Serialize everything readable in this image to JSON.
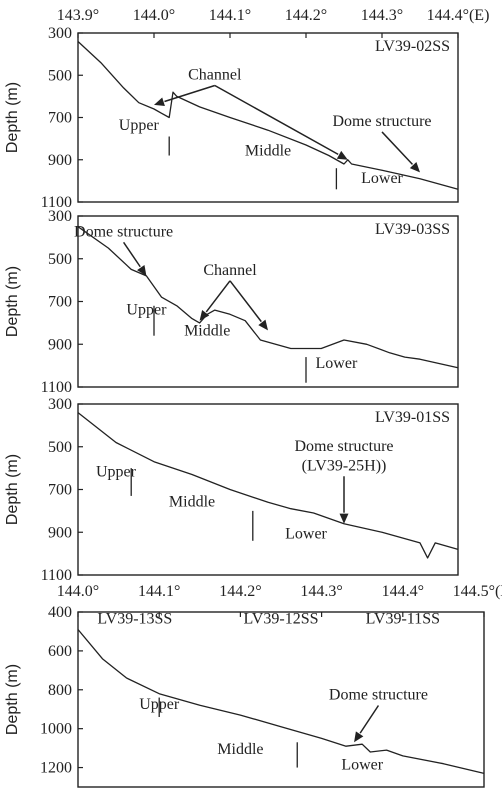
{
  "chart_data": [
    {
      "type": "line",
      "title": "LV39-02SS",
      "top_axis": {
        "ticks": [
          "143.9°",
          "144.0°",
          "144.1°",
          "144.2°",
          "144.3°",
          "144.4°(E)"
        ],
        "values": [
          143.9,
          144.0,
          144.1,
          144.2,
          144.3,
          144.4
        ]
      },
      "xlim": [
        143.9,
        144.4
      ],
      "ylabel": "Depth (m)",
      "ylim": [
        300,
        1100
      ],
      "yticks": [
        "300",
        "500",
        "700",
        "900",
        "1100"
      ],
      "yvalues": [
        300,
        500,
        700,
        900,
        1100
      ],
      "series": [
        {
          "x": [
            143.9,
            143.93,
            143.96,
            143.98,
            144.0,
            144.01,
            144.02,
            144.025,
            144.03,
            144.06,
            144.1,
            144.15,
            144.2,
            144.23,
            144.25,
            144.255,
            144.26,
            144.3,
            144.35,
            144.4
          ],
          "y": [
            340,
            440,
            560,
            630,
            660,
            680,
            700,
            580,
            600,
            650,
            700,
            760,
            830,
            880,
            920,
            900,
            920,
            950,
            990,
            1040
          ]
        }
      ],
      "annotations": [
        {
          "text": "Channel",
          "x": 144.08,
          "y": 520,
          "arrows": [
            [
              144.0,
              640
            ],
            [
              144.255,
              900
            ]
          ]
        },
        {
          "text": "Dome structure",
          "x": 144.3,
          "y": 740,
          "arrows": [
            [
              144.35,
              960
            ]
          ]
        },
        {
          "text": "Upper",
          "x": 143.98,
          "y": 760
        },
        {
          "text": "Middle",
          "x": 144.15,
          "y": 880
        },
        {
          "text": "Lower",
          "x": 144.3,
          "y": 1010
        }
      ],
      "zone_marks": [
        {
          "x": 144.02,
          "y0": 790,
          "y1": 880
        },
        {
          "x": 144.24,
          "y0": 940,
          "y1": 1040
        }
      ]
    },
    {
      "type": "line",
      "title": "LV39-03SS",
      "xlim": [
        143.9,
        144.4
      ],
      "ylabel": "Depth (m)",
      "ylim": [
        300,
        1100
      ],
      "yticks": [
        "300",
        "500",
        "700",
        "900",
        "1100"
      ],
      "yvalues": [
        300,
        500,
        700,
        900,
        1100
      ],
      "series": [
        {
          "x": [
            143.9,
            143.94,
            143.97,
            143.99,
            144.01,
            144.03,
            144.05,
            144.06,
            144.07,
            144.08,
            144.1,
            144.12,
            144.14,
            144.16,
            144.18,
            144.22,
            144.25,
            144.28,
            144.31,
            144.33,
            144.35,
            144.4
          ],
          "y": [
            350,
            450,
            550,
            580,
            680,
            720,
            780,
            800,
            760,
            740,
            760,
            790,
            880,
            900,
            920,
            920,
            880,
            900,
            940,
            960,
            970,
            1010
          ]
        }
      ],
      "annotations": [
        {
          "text": "Dome structure",
          "x": 143.96,
          "y": 395,
          "arrows": [
            [
              143.99,
              580
            ]
          ]
        },
        {
          "text": "Channel",
          "x": 144.1,
          "y": 575,
          "arrows": [
            [
              144.06,
              790
            ],
            [
              144.15,
              835
            ]
          ]
        },
        {
          "text": "Upper",
          "x": 143.99,
          "y": 760
        },
        {
          "text": "Middle",
          "x": 144.07,
          "y": 860
        },
        {
          "text": "Lower",
          "x": 144.24,
          "y": 1010
        }
      ],
      "zone_marks": [
        {
          "x": 144.0,
          "y0": 720,
          "y1": 860
        },
        {
          "x": 144.2,
          "y0": 960,
          "y1": 1080
        }
      ]
    },
    {
      "type": "line",
      "title": "LV39-01SS",
      "xlim": [
        144.0,
        144.5
      ],
      "ylabel": "Depth (m)",
      "ylim": [
        300,
        1100
      ],
      "yticks": [
        "300",
        "500",
        "700",
        "900",
        "1100"
      ],
      "yvalues": [
        300,
        500,
        700,
        900,
        1100
      ],
      "series": [
        {
          "x": [
            144.0,
            144.05,
            144.1,
            144.15,
            144.2,
            144.25,
            144.28,
            144.31,
            144.35,
            144.4,
            144.45,
            144.46,
            144.47,
            144.5
          ],
          "y": [
            340,
            480,
            570,
            630,
            700,
            760,
            790,
            810,
            860,
            900,
            950,
            1020,
            950,
            980
          ]
        }
      ],
      "annotations": [
        {
          "text": "Dome structure",
          "x": 144.35,
          "y": 520
        },
        {
          "text": "(LV39-25H))",
          "x": 144.35,
          "y": 610,
          "arrows": [
            [
              144.35,
              860
            ]
          ]
        },
        {
          "text": "Upper",
          "x": 144.05,
          "y": 640
        },
        {
          "text": "Middle",
          "x": 144.15,
          "y": 780
        },
        {
          "text": "Lower",
          "x": 144.3,
          "y": 930
        }
      ],
      "zone_marks": [
        {
          "x": 144.07,
          "y0": 600,
          "y1": 730
        },
        {
          "x": 144.23,
          "y0": 800,
          "y1": 940
        }
      ]
    },
    {
      "type": "line",
      "title": "",
      "top_axis": {
        "ticks": [
          "144.0°",
          "144.1°",
          "144.2°",
          "144.3°",
          "144.4°",
          "144.5°(E)"
        ],
        "values": [
          144.0,
          144.1,
          144.2,
          144.3,
          144.4,
          144.5
        ]
      },
      "xlim": [
        144.0,
        144.5
      ],
      "ylabel": "Depth (m)",
      "ylim": [
        400,
        1300
      ],
      "yticks": [
        "400",
        "600",
        "800",
        "1000",
        "1200"
      ],
      "yvalues": [
        400,
        600,
        800,
        1000,
        1200
      ],
      "series": [
        {
          "x": [
            144.0,
            144.03,
            144.06,
            144.1,
            144.15,
            144.2,
            144.25,
            144.3,
            144.33,
            144.35,
            144.36,
            144.38,
            144.4,
            144.45,
            144.5
          ],
          "y": [
            490,
            640,
            740,
            820,
            880,
            930,
            990,
            1050,
            1090,
            1080,
            1120,
            1110,
            1140,
            1180,
            1230
          ]
        }
      ],
      "annotations": [
        {
          "text": "LV39-13SS",
          "x": 144.07,
          "y": 460
        },
        {
          "text": "LV39-12SS",
          "x": 144.25,
          "y": 460
        },
        {
          "text": "LV39-11SS",
          "x": 144.4,
          "y": 460
        },
        {
          "text": "Dome structure",
          "x": 144.37,
          "y": 850,
          "arrows": [
            [
              144.34,
              1070
            ]
          ]
        },
        {
          "text": "Upper",
          "x": 144.1,
          "y": 900
        },
        {
          "text": "Middle",
          "x": 144.2,
          "y": 1130
        },
        {
          "text": "Lower",
          "x": 144.35,
          "y": 1210
        }
      ],
      "zone_marks": [
        {
          "x": 144.1,
          "y0": 840,
          "y1": 940
        },
        {
          "x": 144.27,
          "y0": 1070,
          "y1": 1200
        }
      ]
    }
  ]
}
